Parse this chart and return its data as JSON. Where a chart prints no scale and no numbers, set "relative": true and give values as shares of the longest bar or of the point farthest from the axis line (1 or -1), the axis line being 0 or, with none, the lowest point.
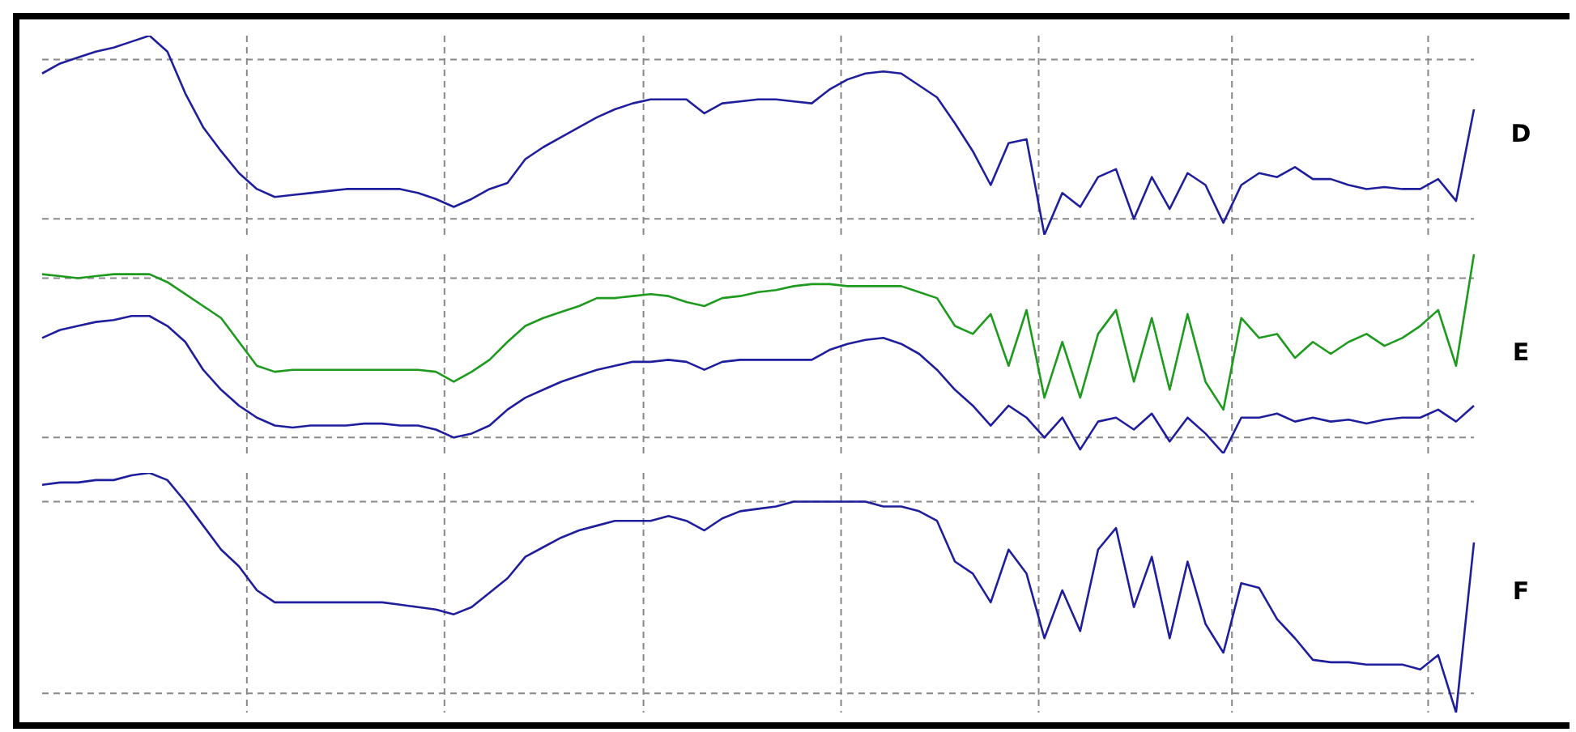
{
  "chart_data": [
    {
      "type": "line",
      "annotations": [
        "D"
      ],
      "relative": true,
      "grid": true,
      "legend": false,
      "marker": "none",
      "line_style": "solid",
      "categories": [
        null,
        null,
        null,
        null,
        null,
        null,
        null,
        null,
        null,
        null,
        null,
        null,
        null,
        null,
        null,
        null,
        null,
        null,
        null,
        null,
        null,
        null,
        null,
        null,
        null,
        null,
        null,
        null,
        null,
        null,
        null,
        null,
        null,
        null,
        null,
        null,
        null,
        null,
        null,
        null,
        null,
        null,
        null,
        null,
        null,
        null,
        null,
        null,
        null,
        null,
        null,
        null,
        null,
        null,
        null,
        null,
        null,
        null,
        null,
        null,
        null,
        null,
        null,
        null,
        null,
        null,
        null,
        null,
        null,
        null,
        null,
        null,
        null,
        null,
        null,
        null,
        null,
        null,
        null,
        null,
        null
      ],
      "series": [
        {
          "color": "#1f1f9e",
          "values": [
            0.81,
            0.86,
            0.89,
            0.92,
            0.94,
            0.97,
            1,
            0.92,
            0.71,
            0.54,
            0.42,
            0.31,
            0.23,
            0.19,
            0.2,
            0.21,
            0.22,
            0.23,
            0.23,
            0.23,
            0.23,
            0.21,
            0.18,
            0.14,
            0.18,
            0.23,
            0.26,
            0.38,
            0.44,
            0.49,
            0.54,
            0.59,
            0.63,
            0.66,
            0.68,
            0.68,
            0.68,
            0.61,
            0.66,
            0.67,
            0.68,
            0.68,
            0.67,
            0.66,
            0.73,
            0.78,
            0.81,
            0.82,
            0.81,
            0.75,
            0.69,
            0.56,
            0.42,
            0.25,
            0.46,
            0.48,
            0,
            0.21,
            0.14,
            0.29,
            0.33,
            0.08,
            0.29,
            0.13,
            0.31,
            0.25,
            0.06,
            0.25,
            0.31,
            0.29,
            0.34,
            0.28,
            0.28,
            0.25,
            0.23,
            0.24,
            0.23,
            0.23,
            0.28,
            0.17,
            0.63
          ]
        }
      ]
    },
    {
      "type": "line",
      "annotations": [
        "E"
      ],
      "relative": true,
      "grid": true,
      "legend": false,
      "marker": "none",
      "line_style": "solid",
      "categories": [
        null,
        null,
        null,
        null,
        null,
        null,
        null,
        null,
        null,
        null,
        null,
        null,
        null,
        null,
        null,
        null,
        null,
        null,
        null,
        null,
        null,
        null,
        null,
        null,
        null,
        null,
        null,
        null,
        null,
        null,
        null,
        null,
        null,
        null,
        null,
        null,
        null,
        null,
        null,
        null,
        null,
        null,
        null,
        null,
        null,
        null,
        null,
        null,
        null,
        null,
        null,
        null,
        null,
        null,
        null,
        null,
        null,
        null,
        null,
        null,
        null,
        null,
        null,
        null,
        null,
        null,
        null,
        null,
        null,
        null,
        null,
        null,
        null,
        null,
        null,
        null,
        null,
        null,
        null,
        null,
        null
      ],
      "series": [
        {
          "color": "#1e9a1e",
          "values": [
            0.9,
            0.89,
            0.88,
            0.89,
            0.9,
            0.9,
            0.9,
            0.86,
            0.8,
            0.74,
            0.68,
            0.56,
            0.44,
            0.41,
            0.42,
            0.42,
            0.42,
            0.42,
            0.42,
            0.42,
            0.42,
            0.42,
            0.41,
            0.36,
            0.41,
            0.47,
            0.56,
            0.64,
            0.68,
            0.71,
            0.74,
            0.78,
            0.78,
            0.79,
            0.8,
            0.79,
            0.76,
            0.74,
            0.78,
            0.79,
            0.81,
            0.82,
            0.84,
            0.85,
            0.85,
            0.84,
            0.84,
            0.84,
            0.84,
            0.81,
            0.78,
            0.64,
            0.6,
            0.7,
            0.44,
            0.72,
            0.28,
            0.56,
            0.28,
            0.6,
            0.72,
            0.36,
            0.68,
            0.32,
            0.7,
            0.36,
            0.22,
            0.68,
            0.58,
            0.6,
            0.48,
            0.56,
            0.5,
            0.56,
            0.6,
            0.54,
            0.58,
            0.64,
            0.72,
            0.44,
            1
          ]
        },
        {
          "color": "#1f1f9e",
          "values": [
            0.58,
            0.62,
            0.64,
            0.66,
            0.67,
            0.69,
            0.69,
            0.64,
            0.56,
            0.42,
            0.32,
            0.24,
            0.18,
            0.14,
            0.13,
            0.14,
            0.14,
            0.14,
            0.15,
            0.15,
            0.14,
            0.14,
            0.12,
            0.08,
            0.1,
            0.14,
            0.22,
            0.28,
            0.32,
            0.36,
            0.39,
            0.42,
            0.44,
            0.46,
            0.46,
            0.47,
            0.46,
            0.42,
            0.46,
            0.47,
            0.47,
            0.47,
            0.47,
            0.47,
            0.52,
            0.55,
            0.57,
            0.58,
            0.55,
            0.5,
            0.42,
            0.32,
            0.24,
            0.14,
            0.24,
            0.18,
            0.08,
            0.18,
            0.02,
            0.16,
            0.18,
            0.12,
            0.2,
            0.06,
            0.18,
            0.1,
            0,
            0.18,
            0.18,
            0.2,
            0.16,
            0.18,
            0.16,
            0.17,
            0.15,
            0.17,
            0.18,
            0.18,
            0.22,
            0.16,
            0.24
          ]
        }
      ]
    },
    {
      "type": "line",
      "annotations": [
        "F"
      ],
      "relative": true,
      "grid": true,
      "legend": false,
      "marker": "none",
      "line_style": "solid",
      "categories": [
        null,
        null,
        null,
        null,
        null,
        null,
        null,
        null,
        null,
        null,
        null,
        null,
        null,
        null,
        null,
        null,
        null,
        null,
        null,
        null,
        null,
        null,
        null,
        null,
        null,
        null,
        null,
        null,
        null,
        null,
        null,
        null,
        null,
        null,
        null,
        null,
        null,
        null,
        null,
        null,
        null,
        null,
        null,
        null,
        null,
        null,
        null,
        null,
        null,
        null,
        null,
        null,
        null,
        null,
        null,
        null,
        null,
        null,
        null,
        null,
        null,
        null,
        null,
        null,
        null,
        null,
        null,
        null,
        null,
        null,
        null,
        null,
        null,
        null,
        null,
        null,
        null,
        null,
        null,
        null,
        null
      ],
      "series": [
        {
          "color": "#1f1f9e",
          "values": [
            0.95,
            0.96,
            0.96,
            0.97,
            0.97,
            0.99,
            1,
            0.97,
            0.88,
            0.78,
            0.68,
            0.61,
            0.51,
            0.46,
            0.46,
            0.46,
            0.46,
            0.46,
            0.46,
            0.46,
            0.45,
            0.44,
            0.43,
            0.41,
            0.44,
            0.5,
            0.56,
            0.65,
            0.69,
            0.73,
            0.76,
            0.78,
            0.8,
            0.8,
            0.8,
            0.82,
            0.8,
            0.76,
            0.81,
            0.84,
            0.85,
            0.86,
            0.88,
            0.88,
            0.88,
            0.88,
            0.88,
            0.86,
            0.86,
            0.84,
            0.8,
            0.63,
            0.58,
            0.46,
            0.68,
            0.58,
            0.31,
            0.51,
            0.34,
            0.68,
            0.77,
            0.44,
            0.65,
            0.31,
            0.63,
            0.37,
            0.25,
            0.54,
            0.52,
            0.39,
            0.31,
            0.22,
            0.21,
            0.21,
            0.2,
            0.2,
            0.2,
            0.18,
            0.24,
            0,
            0.71
          ]
        }
      ]
    }
  ]
}
